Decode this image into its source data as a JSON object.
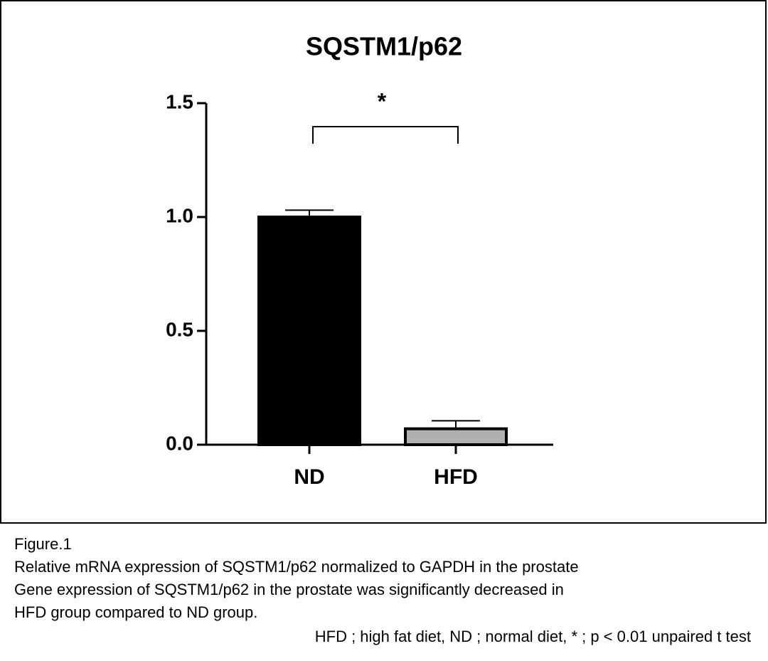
{
  "chart_data": {
    "type": "bar",
    "title": "SQSTM1/p62",
    "categories": [
      "ND",
      "HFD"
    ],
    "values": [
      1.0,
      0.07
    ],
    "errors": [
      0.03,
      0.035
    ],
    "colors": [
      "#000000",
      "#b0b0b0"
    ],
    "ylim": [
      0,
      1.5
    ],
    "yticks": [
      {
        "value": 0,
        "label": "0.0"
      },
      0.5,
      {
        "value": 1,
        "label": "1.0"
      },
      1.5
    ],
    "significance": "*"
  },
  "caption": {
    "lines": [
      "Figure.1",
      "Relative mRNA expression of SQSTM1/p62 normalized to GAPDH in the prostate",
      "Gene expression of SQSTM1/p62  in the prostate was significantly decreased in",
      "HFD group compared to ND group."
    ],
    "note": "HFD ; high fat diet, ND ; normal diet, * ; p < 0.01 unpaired t test"
  }
}
